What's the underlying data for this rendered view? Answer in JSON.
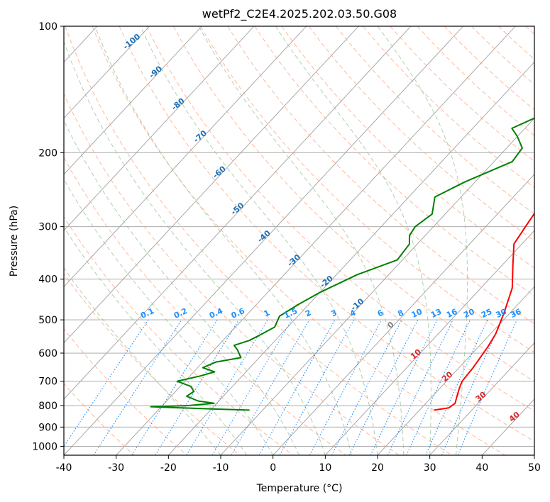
{
  "chart_data": {
    "type": "line",
    "title": "wetPf2_C2E4.2025.202.03.50.G08",
    "xlabel": "Temperature (°C)",
    "ylabel": "Pressure (hPa)",
    "xlim": [
      -40,
      50
    ],
    "ylim": [
      1050,
      100
    ],
    "y_scale": "log",
    "x_ticks": [
      -40,
      -30,
      -20,
      -10,
      0,
      10,
      20,
      30,
      40,
      50
    ],
    "y_ticks": [
      100,
      200,
      300,
      400,
      500,
      600,
      700,
      800,
      900,
      1000
    ],
    "grid": true,
    "series": [
      {
        "color": "#ff0000",
        "points": [
          [
            22.8,
            820
          ],
          [
            25.2,
            810
          ],
          [
            25.6,
            790
          ],
          [
            25.0,
            770
          ],
          [
            23.8,
            730
          ],
          [
            23.0,
            700
          ],
          [
            22.7,
            650
          ],
          [
            21.8,
            580
          ],
          [
            21.0,
            540
          ],
          [
            18.8,
            480
          ],
          [
            16.0,
            420
          ],
          [
            12.0,
            370
          ],
          [
            8.5,
            330
          ],
          [
            7.6,
            300
          ],
          [
            7.0,
            280
          ],
          [
            5.8,
            245
          ],
          [
            4.2,
            225
          ],
          [
            3.2,
            205
          ],
          [
            3.5,
            195
          ],
          [
            4.3,
            180
          ],
          [
            4.3,
            160
          ],
          [
            3.5,
            145
          ],
          [
            4.2,
            130
          ],
          [
            3.7,
            120
          ],
          [
            2.8,
            108
          ],
          [
            2.8,
            100
          ]
        ]
      },
      {
        "color": "#008000",
        "points": [
          [
            -12.5,
            820
          ],
          [
            -20.0,
            815
          ],
          [
            -32.0,
            805
          ],
          [
            -25.0,
            800
          ],
          [
            -20.5,
            790
          ],
          [
            -24.0,
            780
          ],
          [
            -27.0,
            760
          ],
          [
            -26.5,
            740
          ],
          [
            -28.0,
            720
          ],
          [
            -31.5,
            700
          ],
          [
            -28.0,
            680
          ],
          [
            -26.0,
            665
          ],
          [
            -29.0,
            650
          ],
          [
            -27.5,
            630
          ],
          [
            -23.5,
            615
          ],
          [
            -25.5,
            590
          ],
          [
            -27.0,
            575
          ],
          [
            -25.0,
            560
          ],
          [
            -24.0,
            545
          ],
          [
            -22.5,
            520
          ],
          [
            -23.5,
            490
          ],
          [
            -22.0,
            460
          ],
          [
            -20.0,
            430
          ],
          [
            -16.0,
            390
          ],
          [
            -11.0,
            360
          ],
          [
            -11.5,
            330
          ],
          [
            -13.0,
            315
          ],
          [
            -13.5,
            300
          ],
          [
            -12.5,
            280
          ],
          [
            -15.0,
            255
          ],
          [
            -12.0,
            235
          ],
          [
            -6.5,
            210
          ],
          [
            -7.0,
            195
          ],
          [
            -10.0,
            183
          ],
          [
            -12.5,
            175
          ],
          [
            -8.5,
            160
          ],
          [
            -5.5,
            140
          ],
          [
            -2.0,
            125
          ],
          [
            1.0,
            112
          ],
          [
            2.5,
            104
          ],
          [
            3.2,
            100
          ]
        ]
      }
    ],
    "dry_adiabat_labels": [
      "-100",
      "-90",
      "-80",
      "-70",
      "-60",
      "-50",
      "-40",
      "-30",
      "-20",
      "-10",
      "0",
      "10",
      "20",
      "30",
      "40"
    ],
    "mixing_ratio_labels": [
      "0.1",
      "0.2",
      "0.4",
      "0.6",
      "1",
      "1.5",
      "2",
      "3",
      "4",
      "6",
      "8",
      "10",
      "13",
      "16",
      "20",
      "25",
      "30",
      "36"
    ],
    "colors": {
      "isotherm": "#a0a0a0",
      "dry_adiabat": "#ffa07a",
      "moist_adiabat": "#8fbc8f",
      "mixing_ratio": "#1e90ff",
      "label_blue": "#1f6fb4",
      "label_red": "#d62728"
    }
  }
}
